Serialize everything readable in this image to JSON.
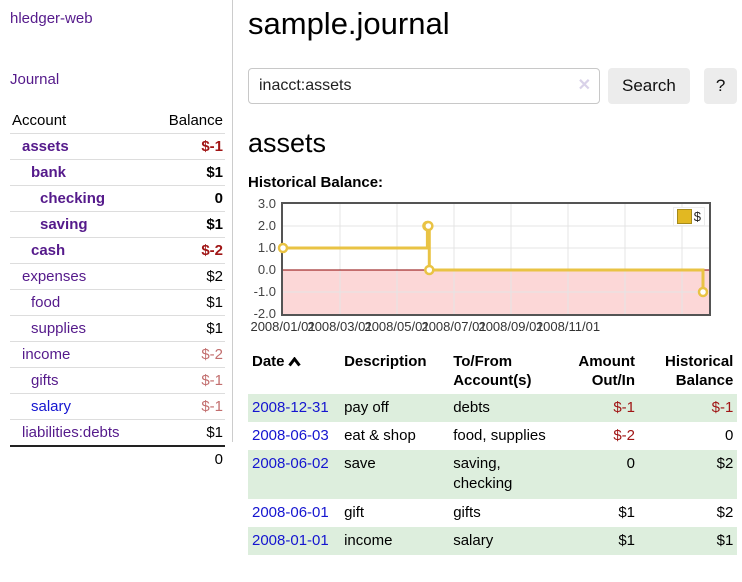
{
  "app": {
    "title": "hledger-web"
  },
  "sidebar": {
    "nav_journal_label": "Journal",
    "accounts_table": {
      "headers": {
        "account": "Account",
        "balance": "Balance"
      },
      "rows": [
        {
          "name": "assets",
          "depth": 0,
          "bold": true,
          "link_color": "purple",
          "balance": "$-1",
          "balance_tone": "neg"
        },
        {
          "name": "bank",
          "depth": 1,
          "bold": true,
          "link_color": "purple",
          "balance": "$1",
          "balance_tone": "pos"
        },
        {
          "name": "checking",
          "depth": 2,
          "bold": true,
          "link_color": "purple",
          "balance": "0",
          "balance_tone": "pos"
        },
        {
          "name": "saving",
          "depth": 2,
          "bold": true,
          "link_color": "purple",
          "balance": "$1",
          "balance_tone": "pos"
        },
        {
          "name": "cash",
          "depth": 1,
          "bold": true,
          "link_color": "purple",
          "balance": "$-2",
          "balance_tone": "neg"
        },
        {
          "name": "expenses",
          "depth": 0,
          "bold": false,
          "link_color": "purple",
          "balance": "$2",
          "balance_tone": "pos"
        },
        {
          "name": "food",
          "depth": 1,
          "bold": false,
          "link_color": "purple",
          "balance": "$1",
          "balance_tone": "pos"
        },
        {
          "name": "supplies",
          "depth": 1,
          "bold": false,
          "link_color": "purple",
          "balance": "$1",
          "balance_tone": "pos"
        },
        {
          "name": "income",
          "depth": 0,
          "bold": false,
          "link_color": "purple",
          "balance": "$-2",
          "balance_tone": "negf"
        },
        {
          "name": "gifts",
          "depth": 1,
          "bold": false,
          "link_color": "purple",
          "balance": "$-1",
          "balance_tone": "negf"
        },
        {
          "name": "salary",
          "depth": 1,
          "bold": false,
          "link_color": "blue",
          "balance": "$-1",
          "balance_tone": "negf"
        },
        {
          "name": "liabilities:debts",
          "depth": 0,
          "bold": false,
          "link_color": "purple",
          "balance": "$1",
          "balance_tone": "pos"
        }
      ],
      "total": "0"
    }
  },
  "header": {
    "title": "sample.journal"
  },
  "search": {
    "query": "inacct:assets",
    "clear_icon": "✕",
    "search_button": "Search",
    "help_button": "?"
  },
  "account_view": {
    "heading": "assets",
    "chart_label": "Historical Balance:"
  },
  "chart_data": {
    "type": "step-line",
    "title": "Historical Balance",
    "x_start": "2008-01-01",
    "series": [
      {
        "name": "$",
        "color": "#e9c344",
        "points": [
          {
            "date": "2008-01-01",
            "value": 1
          },
          {
            "date": "2008-06-01",
            "value": 2
          },
          {
            "date": "2008-06-02",
            "value": 2
          },
          {
            "date": "2008-06-03",
            "value": 0
          },
          {
            "date": "2008-12-31",
            "value": -1
          }
        ]
      }
    ],
    "ylim": [
      -2,
      3
    ],
    "yticks": [
      "3.0",
      "2.0",
      "1.0",
      "0.0",
      "-1.0",
      "-2.0"
    ],
    "xtick_labels": [
      "2008/01/01",
      "2008/03/01",
      "2008/05/01",
      "2008/07/01",
      "2008/09/01",
      "2008/11/01"
    ],
    "legend": {
      "label": "$",
      "position": "top-right"
    },
    "grid": true,
    "negative_region_shaded": true,
    "last_point_at_right_edge": true
  },
  "register_table": {
    "headers": {
      "date": "Date",
      "sort_icon": "chevron-up",
      "description": "Description",
      "tofrom": "To/From Account(s)",
      "amount": "Amount Out/In",
      "balance": "Historical Balance"
    },
    "rows": [
      {
        "date": "2008-12-31",
        "description": "pay off",
        "accounts": "debts",
        "amount": "$-1",
        "amount_tone": "neg",
        "balance": "$-1",
        "balance_tone": "neg"
      },
      {
        "date": "2008-06-03",
        "description": "eat & shop",
        "accounts": "food, supplies",
        "amount": "$-2",
        "amount_tone": "neg",
        "balance": "0",
        "balance_tone": "pos"
      },
      {
        "date": "2008-06-02",
        "description": "save",
        "accounts": "saving, checking",
        "amount": "0",
        "amount_tone": "pos",
        "balance": "$2",
        "balance_tone": "pos"
      },
      {
        "date": "2008-06-01",
        "description": "gift",
        "accounts": "gifts",
        "amount": "$1",
        "amount_tone": "pos",
        "balance": "$2",
        "balance_tone": "pos"
      },
      {
        "date": "2008-01-01",
        "description": "income",
        "accounts": "salary",
        "amount": "$1",
        "amount_tone": "pos",
        "balance": "$1",
        "balance_tone": "pos"
      }
    ]
  },
  "colors": {
    "link_purple": "#551a8b",
    "link_blue": "#1515d0",
    "negative_red": "#a01515",
    "negative_faded": "#c26e6e",
    "stripe": "#ddeedd",
    "chart_line_gold": "#e9c344",
    "chart_legend_gold": "#e2b822",
    "chart_legend_border": "#a58a1b",
    "chart_negative_bg": "#fcd7d7",
    "zero_line": "#8b0000",
    "grid": "#e4e4e4",
    "chart_border": "#545454",
    "btn_bg": "#ececec",
    "input_border": "#c8c8c8",
    "row_border": "#dddddd",
    "divider": "#cccccc",
    "clear_x": "#d9d2e9"
  }
}
